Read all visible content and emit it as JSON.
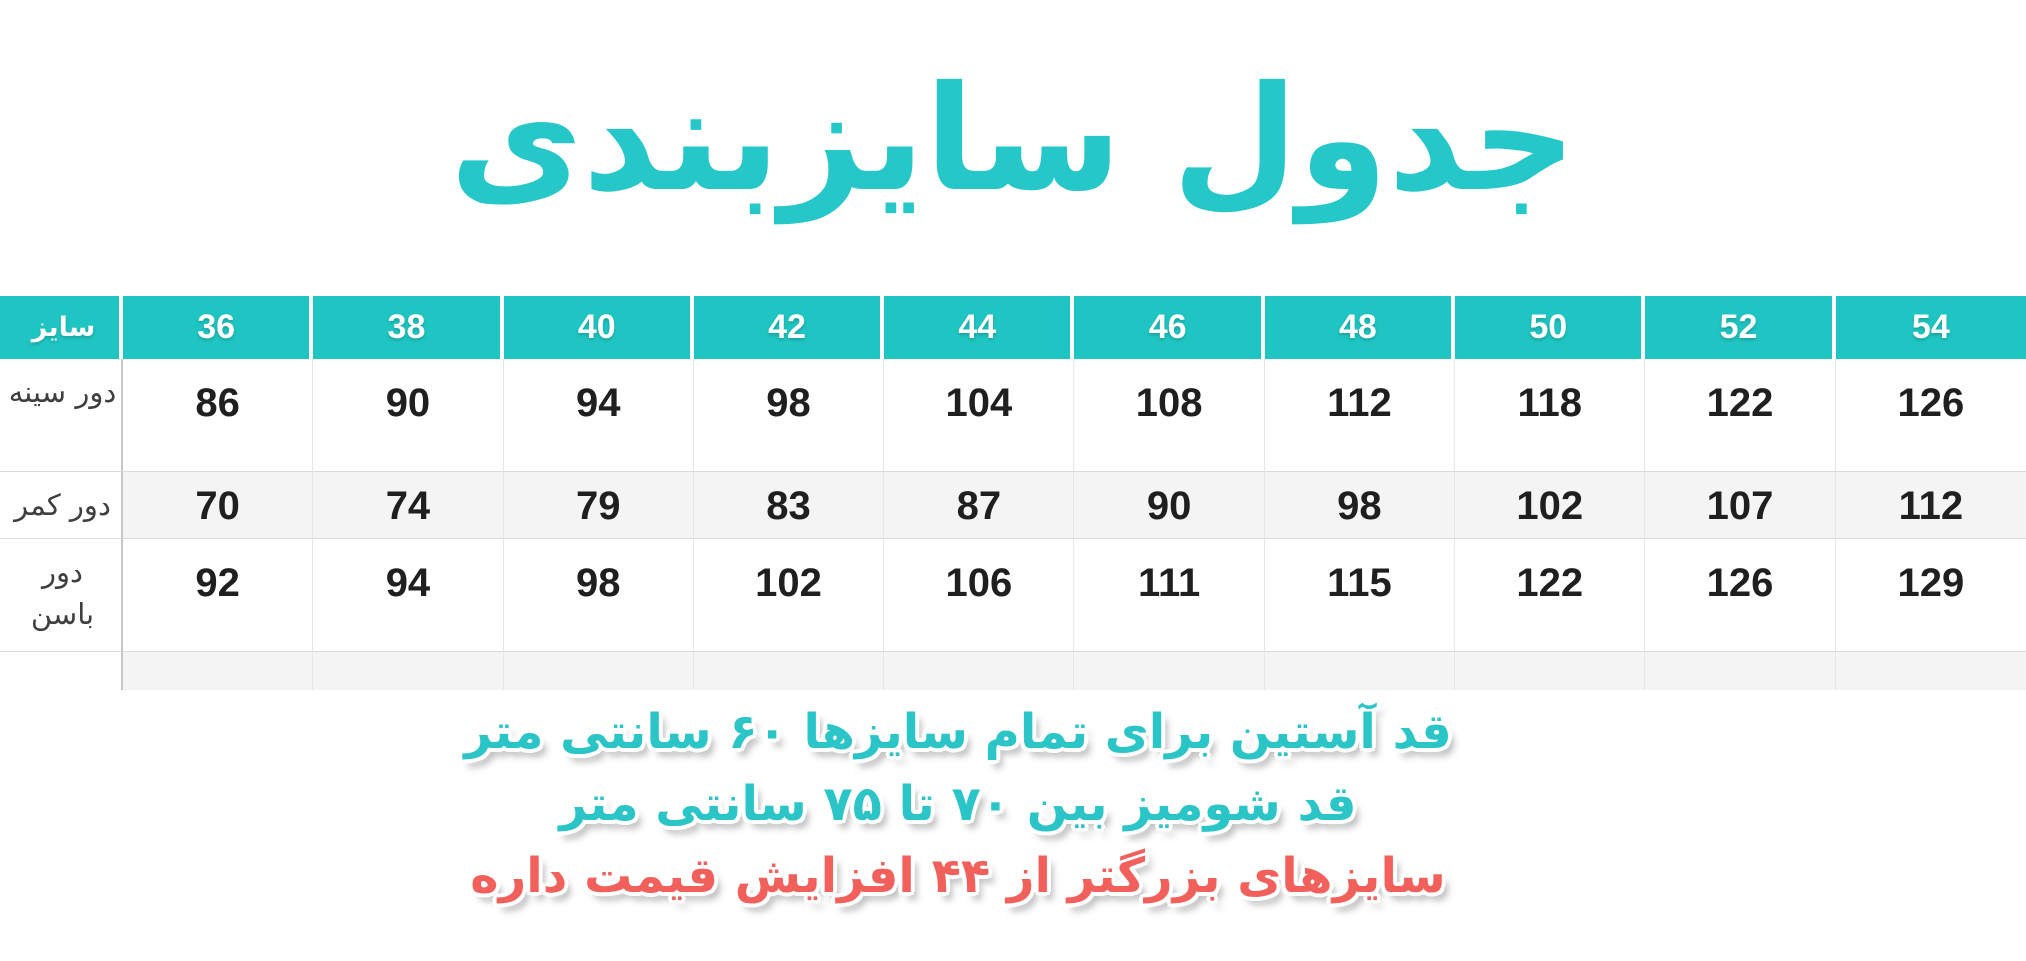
{
  "title": "جدول سایزبندی",
  "chart_data": {
    "type": "table",
    "title": "جدول سایزبندی",
    "columns": [
      "سایز",
      "36",
      "38",
      "40",
      "42",
      "44",
      "46",
      "48",
      "50",
      "52",
      "54"
    ],
    "rows": [
      {
        "label": "دور سینه",
        "values": [
          86,
          90,
          94,
          98,
          104,
          108,
          112,
          118,
          122,
          126
        ]
      },
      {
        "label": "دور کمر",
        "values": [
          70,
          74,
          79,
          83,
          87,
          90,
          98,
          102,
          107,
          112
        ]
      },
      {
        "label": "دور باسن",
        "values": [
          92,
          94,
          98,
          102,
          106,
          111,
          115,
          122,
          126,
          129
        ]
      }
    ],
    "notes": [
      "قد آستین برای تمام سایزها ۶۰ سانتی متر",
      "قد شومیز بین ۷۰ تا ۷۵ سانتی متر",
      "سایزهای بزرگتر از ۴۴ افزایش قیمت داره"
    ]
  },
  "notes": {
    "sleeve_length": "قد آستین برای تمام سایزها ۶۰ سانتی متر",
    "shirt_length": "قد شومیز بین ۷۰ تا ۷۵ سانتی متر",
    "price_increase": "سایزهای بزرگتر از ۴۴ افزایش قیمت داره"
  },
  "colors": {
    "header_teal": "#1fc5c2",
    "title_teal": "#26c7c9",
    "note_teal": "#2bc5c8",
    "note_pink": "#f2605b",
    "alt_row_gray": "#f4f4f4"
  }
}
